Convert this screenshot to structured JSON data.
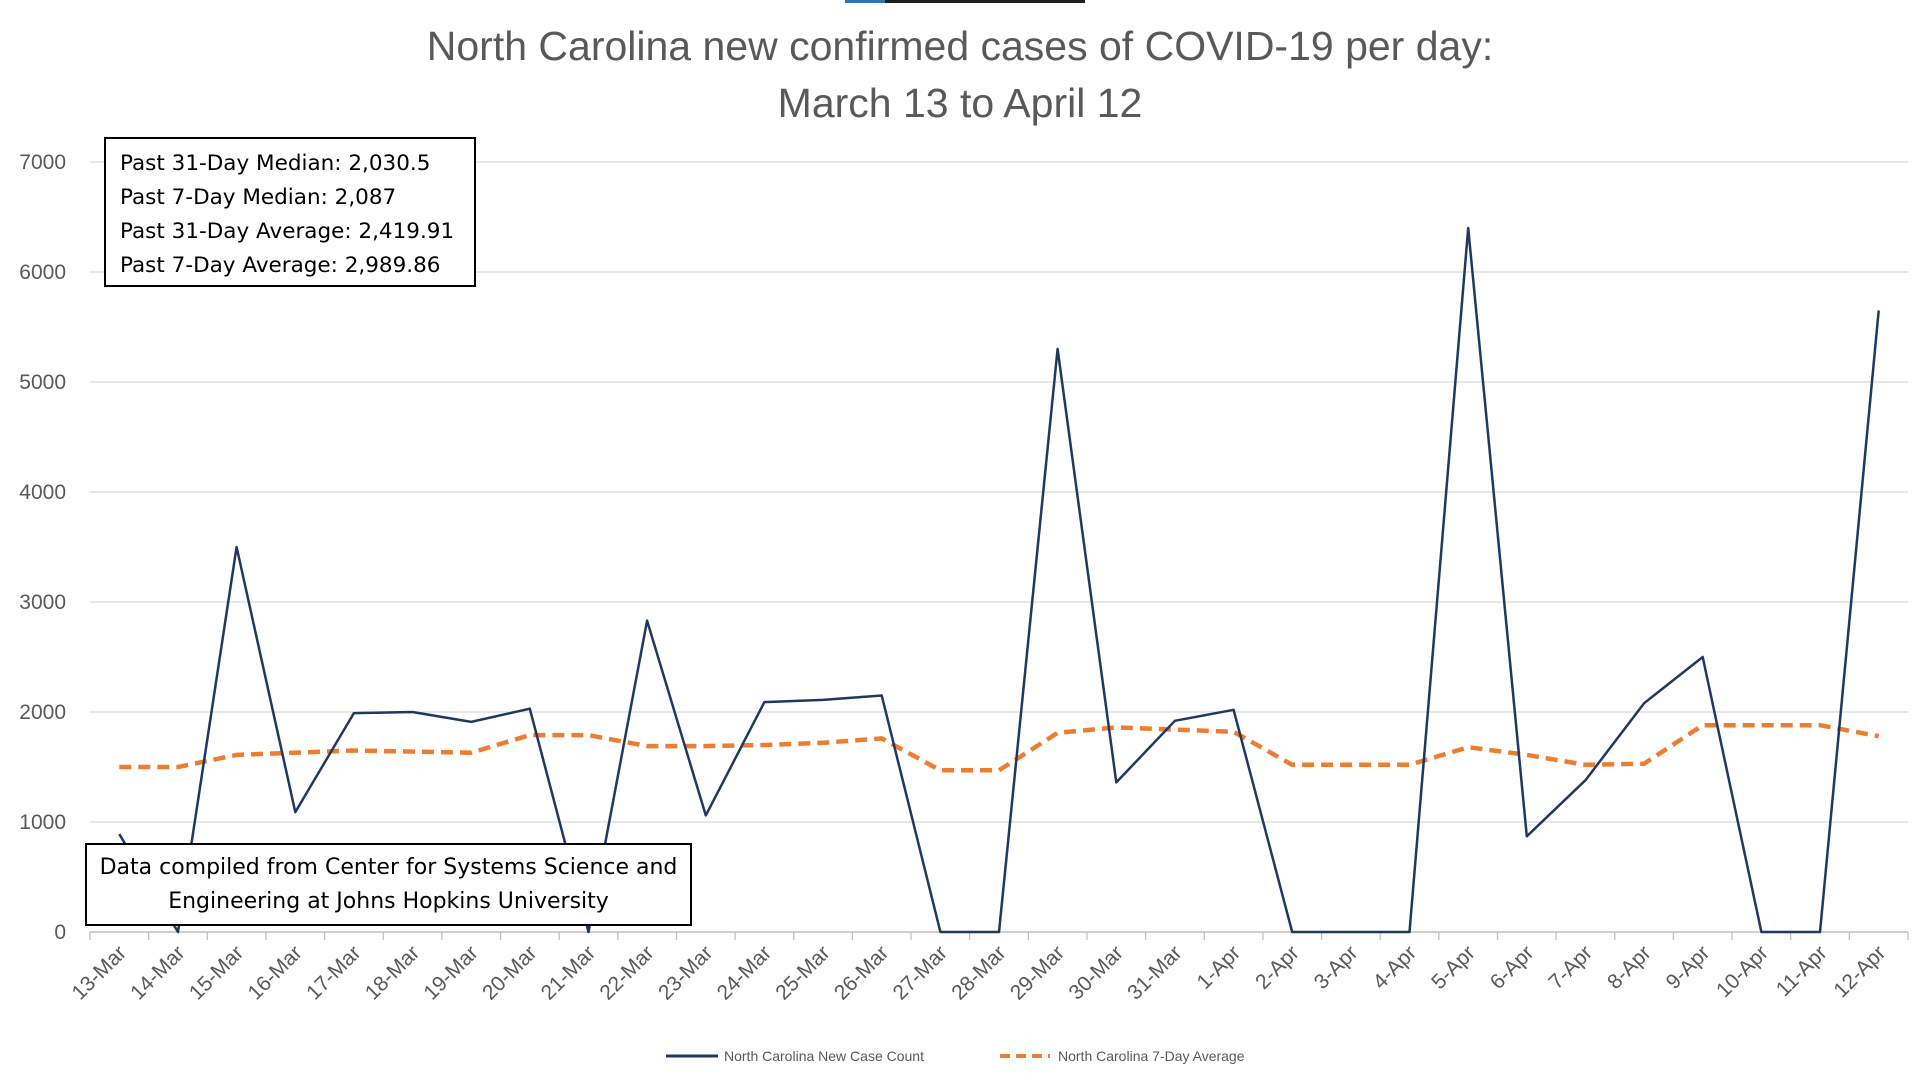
{
  "chart_data": {
    "type": "line",
    "title": [
      "North Carolina new confirmed cases of COVID-19 per day:",
      "March 13 to April 12"
    ],
    "xlabel": "",
    "ylabel": "",
    "ylim": [
      0,
      7000
    ],
    "yticks": [
      0,
      1000,
      2000,
      3000,
      4000,
      5000,
      6000,
      7000
    ],
    "grid": true,
    "legend_position": "bottom",
    "categories": [
      "13-Mar",
      "14-Mar",
      "15-Mar",
      "16-Mar",
      "17-Mar",
      "18-Mar",
      "19-Mar",
      "20-Mar",
      "21-Mar",
      "22-Mar",
      "23-Mar",
      "24-Mar",
      "25-Mar",
      "26-Mar",
      "27-Mar",
      "28-Mar",
      "29-Mar",
      "30-Mar",
      "31-Mar",
      "1-Apr",
      "2-Apr",
      "3-Apr",
      "4-Apr",
      "5-Apr",
      "6-Apr",
      "7-Apr",
      "8-Apr",
      "9-Apr",
      "10-Apr",
      "11-Apr",
      "12-Apr"
    ],
    "series": [
      {
        "name": "North Carolina New Case Count",
        "color": "#1f3864",
        "style": "solid",
        "values": [
          890,
          0,
          3500,
          1090,
          1990,
          2000,
          1910,
          2030,
          0,
          2830,
          1060,
          2090,
          2110,
          2150,
          0,
          0,
          5300,
          1360,
          1920,
          2020,
          0,
          0,
          0,
          6400,
          870,
          1380,
          2080,
          2500,
          0,
          0,
          5650
        ]
      },
      {
        "name": "North Carolina 7-Day Average",
        "color": "#ed7d31",
        "style": "dashed",
        "values": [
          1500,
          1500,
          1610,
          1630,
          1650,
          1640,
          1630,
          1790,
          1790,
          1690,
          1690,
          1700,
          1720,
          1760,
          1470,
          1470,
          1810,
          1860,
          1840,
          1820,
          1520,
          1520,
          1520,
          1680,
          1610,
          1520,
          1530,
          1880,
          1880,
          1880,
          1780
        ]
      }
    ]
  },
  "stats_box": {
    "lines": [
      "Past 31-Day Median: 2,030.5",
      "Past 7-Day Median: 2,087",
      "Past 31-Day Average: 2,419.91",
      "Past 7-Day Average: 2,989.86"
    ]
  },
  "source_box": {
    "lines": [
      "Data compiled from Center for Systems Science and",
      "Engineering at Johns Hopkins University"
    ]
  }
}
